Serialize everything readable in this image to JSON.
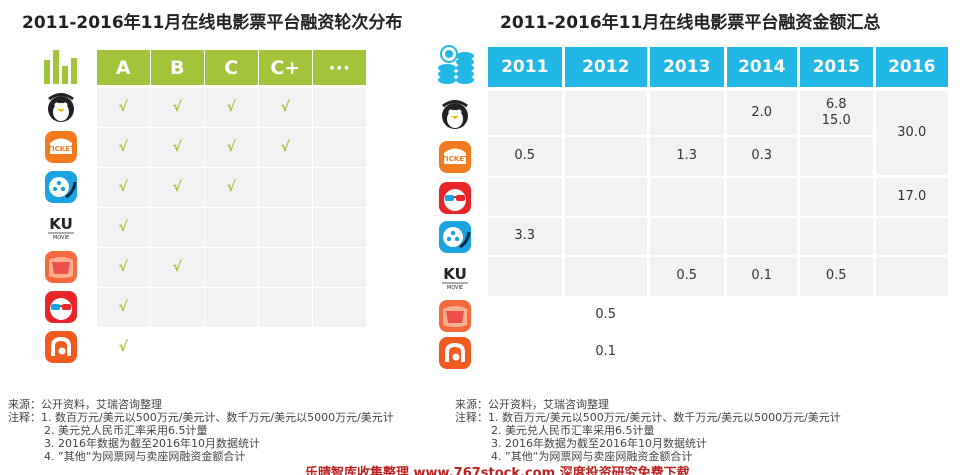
{
  "left": {
    "title": "2011-2016年11月在线电影票平台融资轮次分布",
    "headers": [
      "A",
      "B",
      "C",
      "C+",
      "···"
    ],
    "check_mark": "√",
    "rows": [
      {
        "logo": "penguin-logo",
        "checks": [
          true,
          true,
          true,
          true,
          false
        ]
      },
      {
        "logo": "orange-ticket-logo",
        "checks": [
          true,
          true,
          true,
          true,
          false
        ]
      },
      {
        "logo": "film-reel-logo",
        "checks": [
          true,
          true,
          true,
          false,
          false
        ]
      },
      {
        "logo": "ku-movie-logo",
        "checks": [
          true,
          false,
          false,
          false,
          false
        ]
      },
      {
        "logo": "red-badge-logo",
        "checks": [
          true,
          true,
          false,
          false,
          false
        ]
      },
      {
        "logo": "glasses-face-logo",
        "checks": [
          true,
          false,
          false,
          false,
          false
        ]
      },
      {
        "logo": "orange-swirl-logo",
        "checks": [
          true,
          false,
          false,
          false,
          false
        ]
      }
    ],
    "notes": [
      "来源：公开资料，艾瑞咨询整理",
      "注释：1. 数百万元/美元以500万元/美元计、数千万元/美元以5000万元/美元计",
      "2. 美元兑人民币汇率采用6.5计量",
      "3. 2016年数据为截至2016年10月数据统计",
      "4. ”其他“为网票网与卖座网融资金额合计"
    ]
  },
  "chart_data": {
    "type": "table",
    "title": "2011-2016年11月在线电影票平台融资金额汇总",
    "columns": [
      "2011",
      "2012",
      "2013",
      "2014",
      "2015",
      "2016"
    ],
    "rows": [
      {
        "logo": "penguin-logo",
        "values": [
          "",
          "",
          "",
          "2.0",
          "6.8\n15.0",
          "30.0"
        ]
      },
      {
        "logo": "orange-ticket-logo",
        "values": [
          "0.5",
          "",
          "1.3",
          "0.3",
          "",
          ""
        ]
      },
      {
        "logo": "glasses-face-logo",
        "values": [
          "",
          "",
          "",
          "",
          "",
          "17.0"
        ]
      },
      {
        "logo": "film-reel-logo",
        "values": [
          "3.3",
          "",
          "",
          "",
          "",
          ""
        ]
      },
      {
        "logo": "ku-movie-logo",
        "values": [
          "",
          "",
          "0.5",
          "0.1",
          "0.5",
          ""
        ]
      },
      {
        "logo": "red-badge-logo",
        "values": [
          "",
          "0.5",
          "",
          "",
          "",
          ""
        ]
      },
      {
        "logo": "orange-swirl-logo",
        "values": [
          "",
          "0.1",
          "",
          "",
          "",
          ""
        ]
      }
    ],
    "notes": [
      "来源：公开资料，艾瑞咨询整理",
      "注释：1. 数百万元/美元以500万元/美元计、数千万元/美元以5000万元/美元计",
      "2. 美元兑人民币汇率采用6.5计量",
      "3. 2016年数据为截至2016年10月数据统计",
      "4. ”其他“为网票网与卖座网融资金额合计"
    ]
  },
  "footer": "乐晴智库收集整理 www.767stock.com 深度投资研究免费下载",
  "colors": {
    "green": "#a3c43a",
    "blue": "#21b8e6",
    "orange": "#f47a20",
    "red": "#e8262a"
  }
}
